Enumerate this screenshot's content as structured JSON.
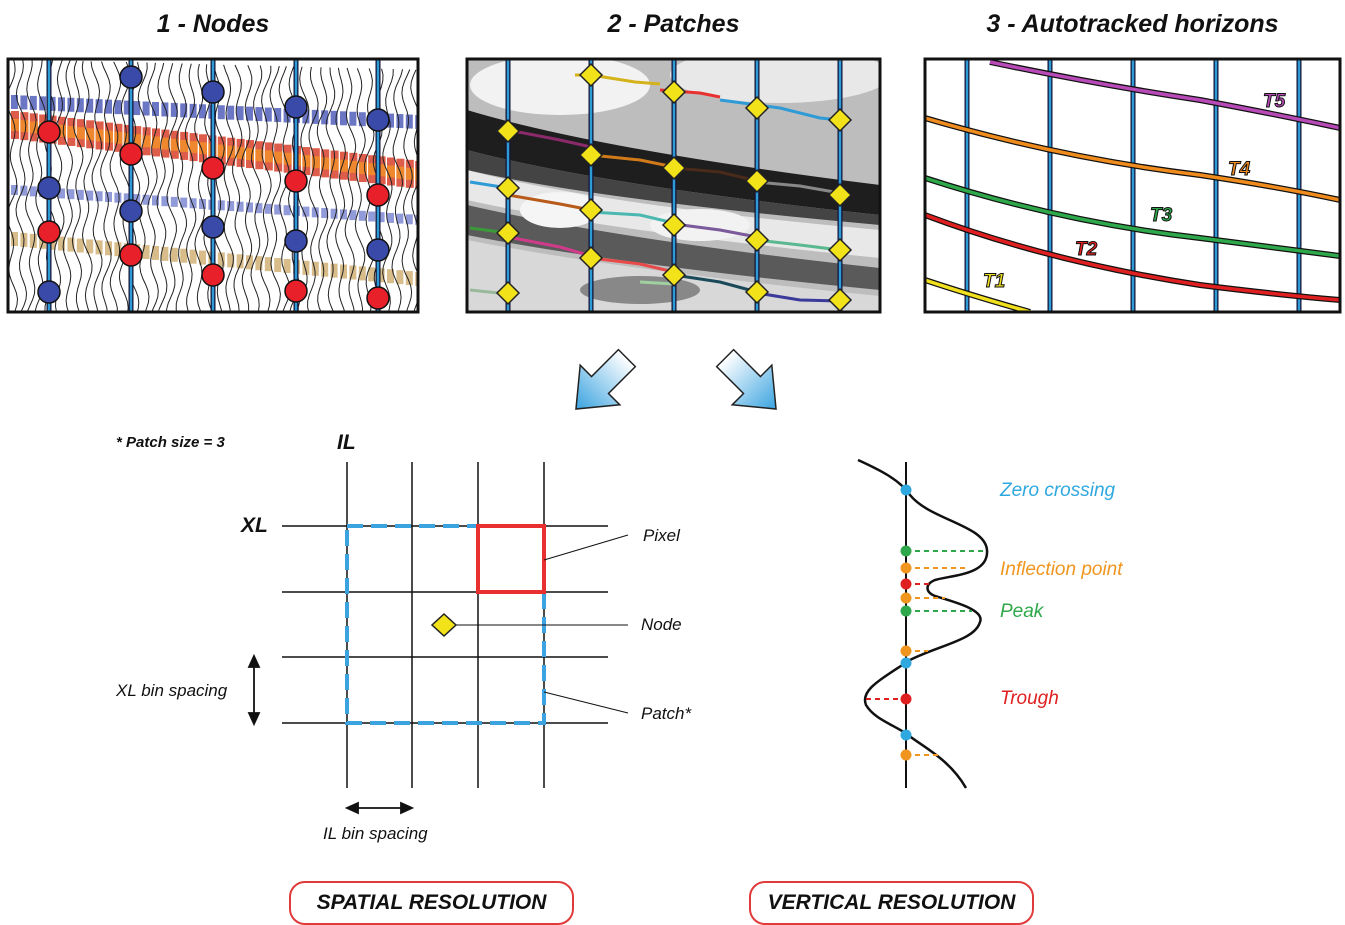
{
  "panels": [
    {
      "title": "1 - Nodes"
    },
    {
      "title": "2 - Patches"
    },
    {
      "title": "3 - Autotracked horizons"
    }
  ],
  "horizons": [
    {
      "label": "T1",
      "color": "#f0e01e"
    },
    {
      "label": "T2",
      "color": "#e02020"
    },
    {
      "label": "T3",
      "color": "#2ea84a"
    },
    {
      "label": "T4",
      "color": "#f08c1e"
    },
    {
      "label": "T5",
      "color": "#b84ab8"
    }
  ],
  "spatial": {
    "note": "* Patch size = 3",
    "il": "IL",
    "xl": "XL",
    "pixel": "Pixel",
    "node": "Node",
    "patch": "Patch*",
    "xl_bin": "XL bin spacing",
    "il_bin": "IL bin spacing",
    "title": "SPATIAL RESOLUTION"
  },
  "vertical": {
    "zero_crossing": "Zero crossing",
    "inflection_point": "Inflection point",
    "peak": "Peak",
    "trough": "Trough",
    "title": "VERTICAL RESOLUTION"
  },
  "colors": {
    "node_red": "#e8202a",
    "node_blue": "#3a4aa8",
    "trace_blue": "#2f9bd6",
    "diamond": "#f2e21a",
    "zero": "#2fa8e0",
    "inflection": "#f0961e",
    "peak": "#2ea84a",
    "trough": "#e02020",
    "pixel": "#e83030"
  }
}
